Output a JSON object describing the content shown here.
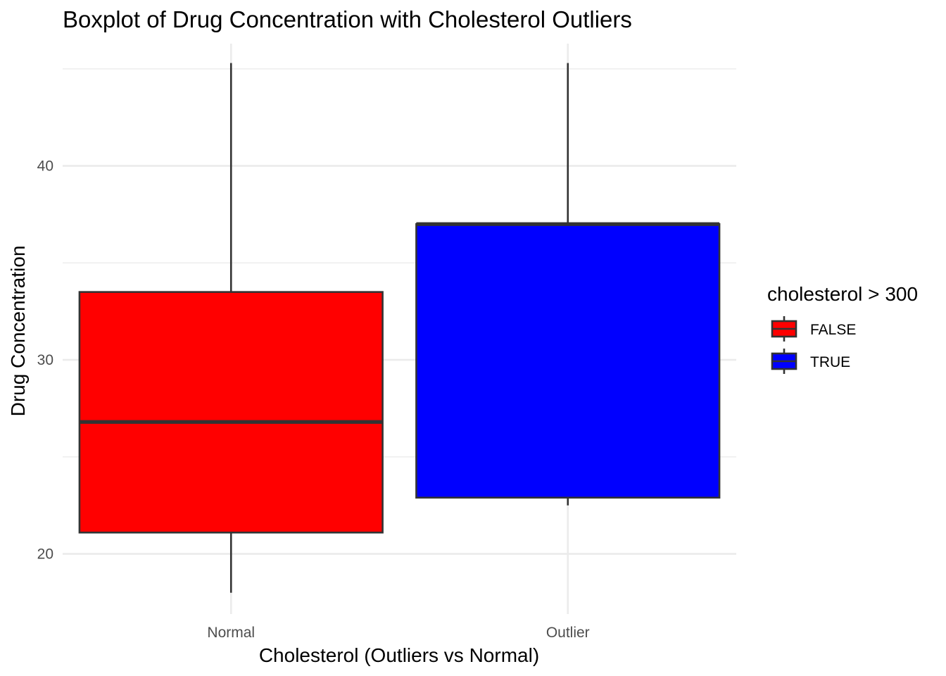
{
  "chart_data": {
    "type": "boxplot",
    "title": "Boxplot of Drug Concentration with Cholesterol Outliers",
    "xlabel": "Cholesterol (Outliers vs Normal)",
    "ylabel": "Drug Concentration",
    "categories": [
      "Normal",
      "Outlier"
    ],
    "ylim": [
      16.9,
      46.3
    ],
    "y_ticks": [
      20,
      30,
      40
    ],
    "y_minor_ticks": [
      25,
      35,
      45
    ],
    "grid": true,
    "boxes": [
      {
        "category": "Normal",
        "group": "FALSE",
        "min": 18.0,
        "q1": 21.1,
        "median": 26.8,
        "q3": 33.5,
        "max": 45.3,
        "color": "#ff0000"
      },
      {
        "category": "Outlier",
        "group": "TRUE",
        "min": 22.5,
        "q1": 22.9,
        "median": 37.0,
        "q3": 37.0,
        "max": 45.3,
        "color": "#0000ff"
      }
    ],
    "legend": {
      "title": "cholesterol > 300",
      "placement": "right",
      "entries": [
        {
          "label": "FALSE",
          "color": "#ff0000"
        },
        {
          "label": "TRUE",
          "color": "#0000ff"
        }
      ]
    }
  }
}
